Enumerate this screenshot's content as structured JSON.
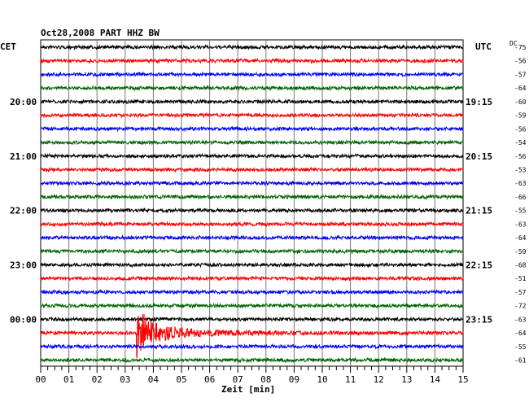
{
  "header": {
    "title": "Oct28,2008    PART HHZ BW",
    "left_tz": "CET",
    "right_tz": "UTC",
    "dc_label": "DC"
  },
  "chart_data": {
    "type": "line",
    "title": "Oct28,2008    PART HHZ BW",
    "xlabel": "Zeit [min]",
    "xlim": [
      0,
      15
    ],
    "x_ticks": [
      "00",
      "01",
      "02",
      "03",
      "04",
      "05",
      "06",
      "07",
      "08",
      "09",
      "10",
      "11",
      "12",
      "13",
      "14",
      "15"
    ],
    "trace_colors": [
      "#000000",
      "#ff0000",
      "#0000ff",
      "#006400"
    ],
    "left_time_labels": [
      "20:00",
      "21:00",
      "22:00",
      "23:00",
      "00:00"
    ],
    "right_time_labels": [
      "19:15",
      "20:15",
      "21:15",
      "22:15",
      "23:15"
    ],
    "dc_offsets": [
      "-75",
      "-56",
      "-57",
      "-64",
      "-60",
      "-59",
      "-56",
      "-54",
      "-56",
      "-53",
      "-63",
      "-66",
      "-55",
      "-63",
      "-64",
      "-59",
      "-68",
      "-51",
      "-57",
      "-72",
      "-63",
      "-64",
      "-55",
      "-61"
    ],
    "event": {
      "trace": 21,
      "onset_min": 3.4,
      "description": "earthquake"
    }
  }
}
